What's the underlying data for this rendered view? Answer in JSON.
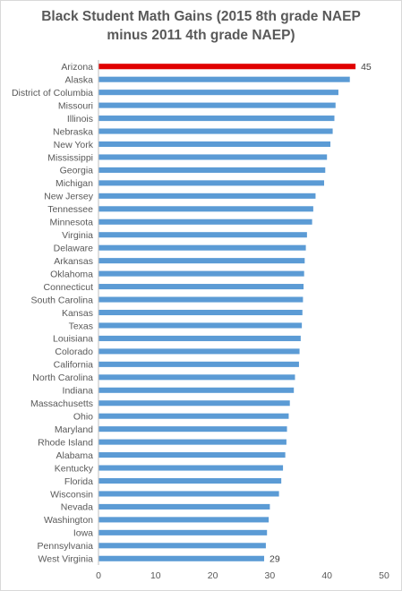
{
  "chart_data": {
    "type": "bar",
    "orientation": "horizontal",
    "title_line1": "Black Student Math Gains (2015 8th grade NAEP",
    "title_line2": "minus 2011 4th grade NAEP)",
    "categories": [
      "Arizona",
      "Alaska",
      "District of Columbia",
      "Missouri",
      "Illinois",
      "Nebraska",
      "New York",
      "Mississippi",
      "Georgia",
      "Michigan",
      "New Jersey",
      "Tennessee",
      "Minnesota",
      "Virginia",
      "Delaware",
      "Arkansas",
      "Oklahoma",
      "Connecticut",
      "South Carolina",
      "Kansas",
      "Texas",
      "Louisiana",
      "Colorado",
      "California",
      "North Carolina",
      "Indiana",
      "Massachusetts",
      "Ohio",
      "Maryland",
      "Rhode Island",
      "Alabama",
      "Kentucky",
      "Florida",
      "Wisconsin",
      "Nevada",
      "Washington",
      "Iowa",
      "Pennsylvania",
      "West Virginia"
    ],
    "values": [
      45,
      44,
      42,
      41.5,
      41.3,
      41,
      40.6,
      40,
      39.7,
      39.5,
      38,
      37.6,
      37.4,
      36.5,
      36.3,
      36.1,
      36,
      35.9,
      35.8,
      35.7,
      35.6,
      35.4,
      35.2,
      35.1,
      34.4,
      34.2,
      33.5,
      33.3,
      33,
      32.9,
      32.7,
      32.3,
      32,
      31.6,
      30,
      29.8,
      29.5,
      29.3,
      29
    ],
    "data_labels": [
      {
        "index": 0,
        "text": "45"
      },
      {
        "index": 38,
        "text": "29"
      }
    ],
    "highlight_index": 0,
    "xlim": [
      0,
      50
    ],
    "xticks": [
      0,
      10,
      20,
      30,
      40,
      50
    ],
    "bar_color": "#5b9bd5",
    "highlight_color": "#e00000",
    "grid": false,
    "legend": "none"
  }
}
